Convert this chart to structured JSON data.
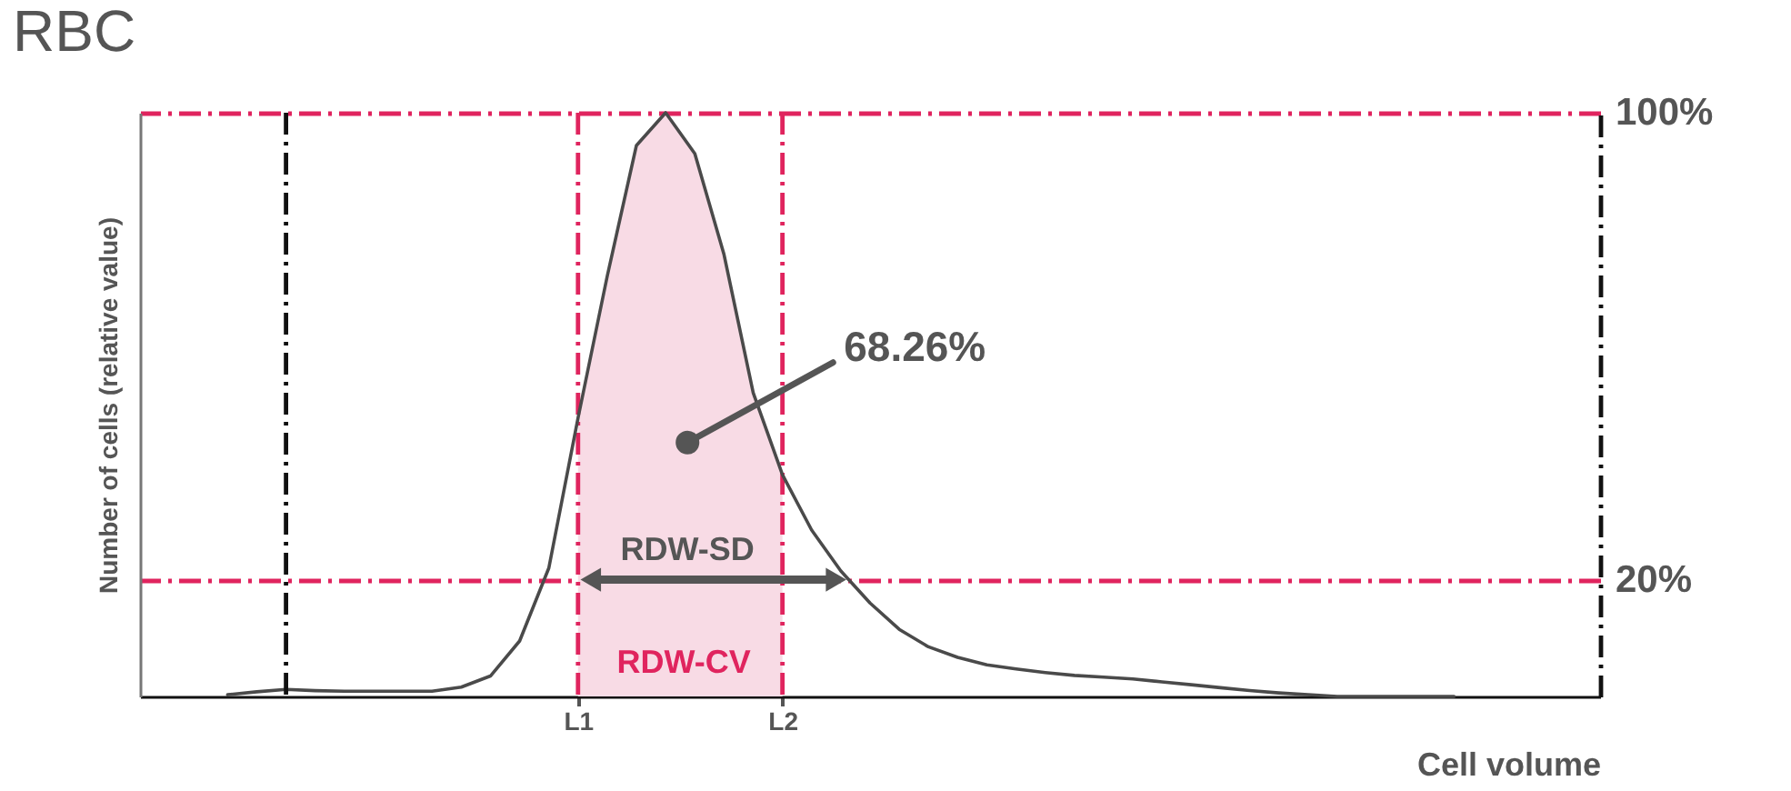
{
  "chart_data": {
    "type": "line",
    "title": "RBC",
    "xlabel": "Cell volume",
    "ylabel": "Number of cells (relative value)",
    "categories": [
      null,
      null,
      null,
      null,
      null,
      null,
      null,
      null,
      null,
      null,
      null,
      null,
      null,
      null,
      null,
      "L1",
      null,
      null,
      null,
      null,
      null,
      null,
      "L2",
      null,
      null,
      null,
      null,
      null,
      null,
      null,
      null,
      null,
      null,
      null,
      null,
      null,
      null,
      null,
      null,
      null,
      null,
      null,
      null,
      null,
      null,
      null,
      null,
      null,
      null,
      null,
      null
    ],
    "ylim": [
      0,
      100
    ],
    "yticks": [
      {
        "value": 20,
        "label": "20%"
      },
      {
        "value": 100,
        "label": "100%"
      }
    ],
    "grid": "y",
    "series": [
      {
        "type": "area",
        "color": "#f8dbe5",
        "values": [
          null,
          null,
          null,
          null,
          null,
          null,
          null,
          null,
          null,
          null,
          null,
          null,
          null,
          null,
          null,
          47.7,
          72,
          94.4,
          100,
          93,
          75.7,
          52,
          38,
          null,
          null,
          null,
          null,
          null,
          null,
          null,
          null,
          null,
          null,
          null,
          null,
          null,
          null,
          null,
          null,
          null,
          null,
          null,
          null,
          null,
          null,
          null,
          null,
          null,
          null,
          null,
          null
        ]
      },
      {
        "color": "#4a4a4a",
        "values": [
          null,
          null,
          null,
          0.3,
          0.8,
          1.2,
          1.0,
          0.9,
          0.9,
          0.9,
          0.9,
          1.6,
          3.5,
          9.5,
          22,
          47.7,
          72,
          94.4,
          100,
          93,
          75.7,
          52,
          38,
          28.5,
          21.5,
          16,
          11.5,
          8.5,
          6.7,
          5.4,
          4.7,
          4.1,
          3.6,
          3.3,
          3.0,
          2.5,
          2.0,
          1.5,
          1.0,
          0.6,
          0.3,
          0,
          0,
          0,
          0,
          0,
          null,
          null,
          null,
          null,
          null
        ]
      }
    ],
    "ref_lines": [
      {
        "axis": "x",
        "value": "L1",
        "color": "#e0245e",
        "line_style": "dashed"
      },
      {
        "axis": "x",
        "value": "L2",
        "color": "#e0245e",
        "line_style": "dashed"
      }
    ],
    "annotations": [
      "68.26%",
      {
        "text": "RDW-SD",
        "x": "L1",
        "y": 20
      },
      "RDW-CV"
    ]
  }
}
